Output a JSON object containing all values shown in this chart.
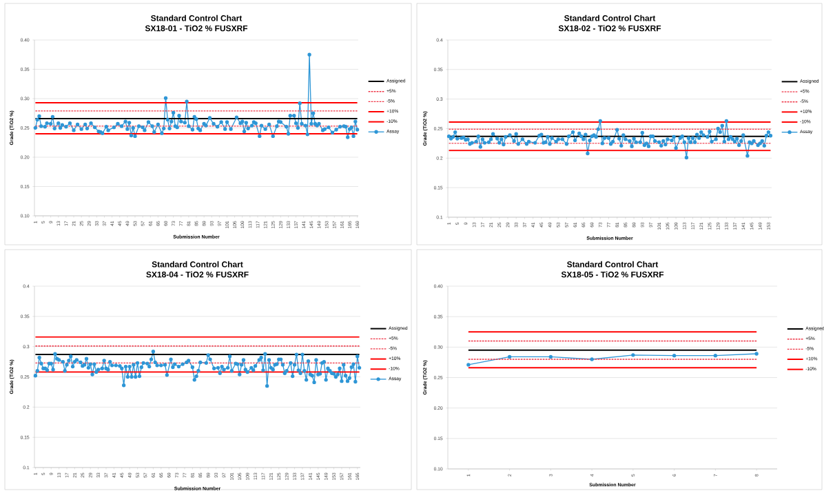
{
  "chart_data": [
    {
      "type": "line",
      "title": "Standard Control Chart",
      "subtitle": "SX18-01 - TiO2 % FUSXRF",
      "xlabel": "Submission Number",
      "ylabel": "Grade (TiO2 %)",
      "xlim": [
        0.5,
        169.5
      ],
      "ylim": [
        0.1,
        0.4
      ],
      "xticks": [
        1,
        5,
        9,
        13,
        17,
        21,
        25,
        29,
        33,
        37,
        41,
        45,
        49,
        53,
        57,
        61,
        65,
        69,
        73,
        77,
        81,
        85,
        89,
        93,
        97,
        101,
        105,
        109,
        113,
        117,
        121,
        125,
        129,
        133,
        137,
        141,
        145,
        149,
        153,
        157,
        161,
        165,
        169
      ],
      "yticks": [
        {
          "value": 0.1,
          "label": "0.10"
        },
        {
          "value": 0.15,
          "label": "0.15"
        },
        {
          "value": 0.2,
          "label": "0.20"
        },
        {
          "value": 0.25,
          "label": "0.25"
        },
        {
          "value": 0.3,
          "label": "0.30"
        },
        {
          "value": 0.35,
          "label": "0.35"
        },
        {
          "value": 0.4,
          "label": "0.40"
        }
      ],
      "grid": "y",
      "legend": "right",
      "series": [
        {
          "name": "Assigned",
          "color": "#000000",
          "line_style": "solid",
          "marker": "none",
          "x": [
            1,
            169
          ],
          "values": [
            0.266,
            0.266
          ]
        },
        {
          "name": "+5%",
          "color": "#ee3344",
          "line_style": "dotted",
          "marker": "none",
          "x": [
            1,
            169
          ],
          "values": [
            0.279,
            0.279
          ]
        },
        {
          "name": "-5%",
          "color": "#ee3344",
          "line_style": "dotted",
          "marker": "none",
          "x": [
            1,
            169
          ],
          "values": [
            0.253,
            0.253
          ]
        },
        {
          "name": "+10%",
          "color": "#ff0000",
          "line_style": "solid",
          "marker": "none",
          "x": [
            1,
            169
          ],
          "values": [
            0.293,
            0.293
          ]
        },
        {
          "name": "-10%",
          "color": "#ff0000",
          "line_style": "solid",
          "marker": "none",
          "x": [
            1,
            169
          ],
          "values": [
            0.24,
            0.24
          ]
        },
        {
          "name": "Assay",
          "color": "#2e96d6",
          "line_style": "solid",
          "marker": "circle",
          "x": [
            1,
            2,
            3,
            4,
            6,
            7,
            9,
            10,
            11,
            13,
            14,
            15,
            17,
            19,
            21,
            23,
            25,
            27,
            28,
            30,
            32,
            34,
            35,
            36,
            38,
            39,
            42,
            44,
            46,
            48,
            49,
            50,
            51,
            52,
            53,
            55,
            57,
            58,
            60,
            62,
            63,
            65,
            67,
            68,
            69,
            70,
            71,
            72,
            73,
            74,
            75,
            76,
            77,
            79,
            80,
            81,
            83,
            84,
            85,
            86,
            87,
            89,
            90,
            92,
            94,
            96,
            98,
            100,
            101,
            103,
            106,
            108,
            109,
            110,
            111,
            112,
            114,
            115,
            116,
            118,
            119,
            121,
            123,
            125,
            127,
            128,
            129,
            132,
            133,
            134,
            136,
            137,
            138,
            139,
            140,
            142,
            143,
            144,
            145,
            146,
            147,
            148,
            149,
            151,
            152,
            154,
            156,
            158,
            160,
            162,
            163,
            164,
            165,
            166,
            167,
            168,
            169
          ],
          "values": [
            0.25,
            0.264,
            0.27,
            0.253,
            0.252,
            0.258,
            0.257,
            0.269,
            0.249,
            0.258,
            0.25,
            0.255,
            0.252,
            0.258,
            0.246,
            0.256,
            0.248,
            0.256,
            0.249,
            0.258,
            0.251,
            0.244,
            0.243,
            0.241,
            0.252,
            0.246,
            0.251,
            0.257,
            0.253,
            0.261,
            0.248,
            0.259,
            0.237,
            0.25,
            0.236,
            0.253,
            0.251,
            0.246,
            0.26,
            0.253,
            0.243,
            0.256,
            0.241,
            0.249,
            0.301,
            0.264,
            0.249,
            0.261,
            0.276,
            0.253,
            0.251,
            0.271,
            0.261,
            0.259,
            0.295,
            0.253,
            0.247,
            0.269,
            0.265,
            0.249,
            0.246,
            0.257,
            0.254,
            0.267,
            0.257,
            0.252,
            0.26,
            0.248,
            0.26,
            0.248,
            0.268,
            0.258,
            0.261,
            0.244,
            0.259,
            0.249,
            0.254,
            0.26,
            0.258,
            0.236,
            0.254,
            0.248,
            0.256,
            0.236,
            0.253,
            0.261,
            0.26,
            0.252,
            0.24,
            0.271,
            0.271,
            0.258,
            0.25,
            0.292,
            0.257,
            0.254,
            0.239,
            0.375,
            0.257,
            0.275,
            0.257,
            0.254,
            0.257,
            0.246,
            0.248,
            0.251,
            0.242,
            0.247,
            0.252,
            0.253,
            0.252,
            0.234,
            0.248,
            0.251,
            0.236,
            0.261,
            0.247
          ]
        }
      ]
    },
    {
      "type": "line",
      "title": "Standard Control Chart",
      "subtitle": "SX18-02 - TiO2 % FUSXRF",
      "xlabel": "Submission Number",
      "ylabel": "Grade (TiO2 %)",
      "xlim": [
        0.5,
        154.5
      ],
      "ylim": [
        0.1,
        0.4
      ],
      "xticks": [
        1,
        5,
        9,
        13,
        17,
        21,
        25,
        29,
        33,
        37,
        41,
        45,
        49,
        53,
        57,
        61,
        65,
        69,
        73,
        77,
        81,
        85,
        89,
        93,
        97,
        101,
        105,
        109,
        113,
        117,
        121,
        125,
        129,
        133,
        137,
        141,
        145,
        149,
        153
      ],
      "yticks": [
        0.1,
        0.15,
        0.2,
        0.25,
        0.3,
        0.35,
        0.4
      ],
      "grid": "y",
      "legend": "right",
      "series": [
        {
          "name": "Assigned",
          "color": "#000000",
          "line_style": "solid",
          "marker": "none",
          "x": [
            1,
            154
          ],
          "values": [
            0.237,
            0.237
          ]
        },
        {
          "name": "+5%",
          "color": "#ee3344",
          "line_style": "dotted",
          "marker": "none",
          "x": [
            1,
            154
          ],
          "values": [
            0.249,
            0.249
          ]
        },
        {
          "name": "-5%",
          "color": "#ee3344",
          "line_style": "dotted",
          "marker": "none",
          "x": [
            1,
            154
          ],
          "values": [
            0.225,
            0.225
          ]
        },
        {
          "name": "+10%",
          "color": "#ff0000",
          "line_style": "solid",
          "marker": "none",
          "x": [
            1,
            154
          ],
          "values": [
            0.261,
            0.261
          ]
        },
        {
          "name": "-10%",
          "color": "#ff0000",
          "line_style": "solid",
          "marker": "none",
          "x": [
            1,
            154
          ],
          "values": [
            0.213,
            0.213
          ]
        },
        {
          "name": "Assay",
          "color": "#2e96d6",
          "line_style": "solid",
          "marker": "circle",
          "x": [
            1,
            2,
            3,
            4,
            5,
            7,
            8,
            9,
            10,
            11,
            12,
            14,
            15,
            16,
            17,
            18,
            20,
            21,
            22,
            24,
            25,
            26,
            27,
            28,
            30,
            32,
            33,
            34,
            36,
            38,
            39,
            42,
            44,
            45,
            46,
            47,
            48,
            49,
            50,
            52,
            53,
            55,
            57,
            58,
            60,
            61,
            63,
            64,
            65,
            66,
            67,
            68,
            69,
            70,
            71,
            72,
            73,
            74,
            75,
            77,
            78,
            79,
            81,
            82,
            83,
            84,
            85,
            87,
            88,
            89,
            90,
            92,
            93,
            94,
            95,
            96,
            97,
            98,
            99,
            101,
            102,
            103,
            104,
            105,
            107,
            108,
            109,
            111,
            112,
            113,
            114,
            115,
            116,
            117,
            118,
            119,
            120,
            121,
            122,
            124,
            125,
            126,
            128,
            129,
            130,
            131,
            132,
            133,
            134,
            135,
            136,
            137,
            138,
            139,
            140,
            141,
            143,
            144,
            145,
            146,
            148,
            149,
            150,
            151,
            152,
            153,
            154
          ],
          "values": [
            0.237,
            0.233,
            0.236,
            0.244,
            0.233,
            0.234,
            0.235,
            0.231,
            0.232,
            0.224,
            0.226,
            0.228,
            0.237,
            0.219,
            0.232,
            0.226,
            0.227,
            0.232,
            0.241,
            0.233,
            0.226,
            0.232,
            0.223,
            0.236,
            0.239,
            0.229,
            0.241,
            0.224,
            0.232,
            0.224,
            0.228,
            0.226,
            0.238,
            0.24,
            0.226,
            0.227,
            0.236,
            0.224,
            0.234,
            0.228,
            0.232,
            0.232,
            0.224,
            0.237,
            0.244,
            0.23,
            0.242,
            0.237,
            0.232,
            0.24,
            0.208,
            0.23,
            0.237,
            0.239,
            0.236,
            0.249,
            0.263,
            0.225,
            0.234,
            0.234,
            0.224,
            0.228,
            0.248,
            0.233,
            0.221,
            0.239,
            0.232,
            0.229,
            0.22,
            0.233,
            0.227,
            0.227,
            0.243,
            0.222,
            0.225,
            0.22,
            0.237,
            0.237,
            0.229,
            0.227,
            0.221,
            0.229,
            0.223,
            0.232,
            0.23,
            0.236,
            0.217,
            0.234,
            0.237,
            0.227,
            0.201,
            0.234,
            0.227,
            0.234,
            0.227,
            0.24,
            0.234,
            0.244,
            0.239,
            0.236,
            0.245,
            0.228,
            0.232,
            0.25,
            0.244,
            0.255,
            0.228,
            0.263,
            0.232,
            0.236,
            0.232,
            0.228,
            0.233,
            0.222,
            0.229,
            0.239,
            0.204,
            0.227,
            0.225,
            0.229,
            0.222,
            0.225,
            0.229,
            0.221,
            0.238,
            0.244,
            0.238
          ]
        }
      ]
    },
    {
      "type": "line",
      "title": "Standard Control Chart",
      "subtitle": "SX18-04 - TiO2 % FUSXRF",
      "xlabel": "Submission Number",
      "ylabel": "Grade (TiO2 %)",
      "xlim": [
        0.5,
        166.5
      ],
      "ylim": [
        0.1,
        0.4
      ],
      "xticks": [
        1,
        5,
        9,
        13,
        17,
        21,
        25,
        29,
        33,
        37,
        41,
        45,
        49,
        53,
        57,
        61,
        65,
        69,
        73,
        77,
        81,
        85,
        89,
        93,
        97,
        101,
        105,
        109,
        113,
        117,
        121,
        125,
        129,
        133,
        137,
        141,
        145,
        149,
        153,
        157,
        161,
        165
      ],
      "yticks": [
        0.1,
        0.15,
        0.2,
        0.25,
        0.3,
        0.35,
        0.4
      ],
      "grid": "y",
      "legend": "right",
      "series": [
        {
          "name": "Assigned",
          "color": "#000000",
          "line_style": "solid",
          "marker": "none",
          "x": [
            1,
            166
          ],
          "values": [
            0.287,
            0.287
          ]
        },
        {
          "name": "+5%",
          "color": "#ee3344",
          "line_style": "dotted",
          "marker": "none",
          "x": [
            1,
            166
          ],
          "values": [
            0.301,
            0.301
          ]
        },
        {
          "name": "-5%",
          "color": "#ee3344",
          "line_style": "dotted",
          "marker": "none",
          "x": [
            1,
            166
          ],
          "values": [
            0.273,
            0.273
          ]
        },
        {
          "name": "+10%",
          "color": "#ff0000",
          "line_style": "solid",
          "marker": "none",
          "x": [
            1,
            166
          ],
          "values": [
            0.316,
            0.316
          ]
        },
        {
          "name": "-10%",
          "color": "#ff0000",
          "line_style": "solid",
          "marker": "none",
          "x": [
            1,
            166
          ],
          "values": [
            0.258,
            0.258
          ]
        },
        {
          "name": "Assay",
          "color": "#2e96d6",
          "line_style": "solid",
          "marker": "circle",
          "x": [
            1,
            2,
            3,
            4,
            5,
            6,
            7,
            8,
            9,
            10,
            11,
            12,
            13,
            15,
            16,
            17,
            18,
            19,
            20,
            21,
            22,
            24,
            25,
            26,
            27,
            28,
            29,
            30,
            31,
            32,
            33,
            35,
            36,
            37,
            38,
            39,
            40,
            42,
            44,
            45,
            46,
            47,
            48,
            49,
            50,
            51,
            52,
            53,
            54,
            55,
            56,
            58,
            59,
            60,
            61,
            62,
            63,
            65,
            67,
            68,
            70,
            71,
            72,
            74,
            76,
            78,
            79,
            81,
            82,
            83,
            84,
            85,
            88,
            89,
            90,
            92,
            94,
            95,
            96,
            97,
            99,
            100,
            101,
            103,
            104,
            105,
            106,
            107,
            108,
            109,
            111,
            112,
            113,
            115,
            116,
            117,
            118,
            119,
            120,
            121,
            122,
            123,
            124,
            125,
            126,
            127,
            128,
            129,
            131,
            132,
            133,
            134,
            135,
            136,
            137,
            138,
            139,
            140,
            141,
            142,
            143,
            144,
            145,
            146,
            147,
            148,
            149,
            150,
            151,
            152,
            153,
            154,
            155,
            156,
            157,
            158,
            159,
            160,
            161,
            162,
            163,
            164,
            165,
            166
          ],
          "values": [
            0.252,
            0.26,
            0.282,
            0.272,
            0.264,
            0.264,
            0.261,
            0.272,
            0.272,
            0.262,
            0.288,
            0.28,
            0.278,
            0.275,
            0.26,
            0.27,
            0.277,
            0.284,
            0.267,
            0.275,
            0.278,
            0.274,
            0.268,
            0.27,
            0.28,
            0.265,
            0.271,
            0.254,
            0.271,
            0.258,
            0.262,
            0.264,
            0.277,
            0.264,
            0.262,
            0.275,
            0.269,
            0.269,
            0.268,
            0.264,
            0.236,
            0.267,
            0.25,
            0.267,
            0.25,
            0.27,
            0.25,
            0.273,
            0.251,
            0.266,
            0.273,
            0.272,
            0.267,
            0.279,
            0.292,
            0.274,
            0.269,
            0.269,
            0.27,
            0.253,
            0.279,
            0.266,
            0.271,
            0.267,
            0.271,
            0.274,
            0.277,
            0.266,
            0.245,
            0.251,
            0.26,
            0.274,
            0.273,
            0.286,
            0.279,
            0.264,
            0.265,
            0.256,
            0.267,
            0.262,
            0.265,
            0.284,
            0.26,
            0.272,
            0.271,
            0.254,
            0.27,
            0.278,
            0.262,
            0.258,
            0.265,
            0.261,
            0.268,
            0.278,
            0.282,
            0.261,
            0.288,
            0.235,
            0.278,
            0.265,
            0.262,
            0.27,
            0.271,
            0.279,
            0.279,
            0.27,
            0.256,
            0.26,
            0.273,
            0.251,
            0.27,
            0.287,
            0.261,
            0.256,
            0.287,
            0.26,
            0.245,
            0.276,
            0.254,
            0.252,
            0.241,
            0.278,
            0.254,
            0.255,
            0.273,
            0.275,
            0.245,
            0.264,
            0.26,
            0.256,
            0.255,
            0.25,
            0.254,
            0.264,
            0.243,
            0.27,
            0.252,
            0.243,
            0.248,
            0.266,
            0.271,
            0.242,
            0.284,
            0.265
          ]
        }
      ]
    },
    {
      "type": "line",
      "title": "Standard Control Chart",
      "subtitle": "SX18-05 - TiO2 % FUSXRF",
      "xlabel": "Submission Number",
      "ylabel": "Grade (TiO2 %)",
      "xlim": [
        0.5,
        8.5
      ],
      "ylim": [
        0.1,
        0.4
      ],
      "xticks": [
        1,
        2,
        3,
        4,
        5,
        6,
        7,
        8
      ],
      "yticks": [
        {
          "value": 0.1,
          "label": "0.10"
        },
        {
          "value": 0.15,
          "label": "0.15"
        },
        {
          "value": 0.2,
          "label": "0.20"
        },
        {
          "value": 0.25,
          "label": "0.25"
        },
        {
          "value": 0.3,
          "label": "0.30"
        },
        {
          "value": 0.35,
          "label": "0.35"
        },
        {
          "value": 0.4,
          "label": "0.40"
        }
      ],
      "grid": "y",
      "legend": "right",
      "series": [
        {
          "name": "Assigned",
          "color": "#000000",
          "line_style": "solid",
          "marker": "none",
          "x": [
            1,
            8
          ],
          "values": [
            0.295,
            0.295
          ]
        },
        {
          "name": "+5%",
          "color": "#ee3344",
          "line_style": "dotted",
          "marker": "none",
          "x": [
            1,
            8
          ],
          "values": [
            0.31,
            0.31
          ]
        },
        {
          "name": "-5%",
          "color": "#ee3344",
          "line_style": "dotted",
          "marker": "none",
          "x": [
            1,
            8
          ],
          "values": [
            0.28,
            0.28
          ]
        },
        {
          "name": "+10%",
          "color": "#ff0000",
          "line_style": "solid",
          "marker": "none",
          "x": [
            1,
            8
          ],
          "values": [
            0.325,
            0.325
          ]
        },
        {
          "name": "-10%",
          "color": "#ff0000",
          "line_style": "solid",
          "marker": "none",
          "x": [
            1,
            8
          ],
          "values": [
            0.266,
            0.266
          ]
        },
        {
          "color": "#2e96d6",
          "line_style": "solid",
          "marker": "circle",
          "x": [
            1,
            2,
            3,
            4,
            5,
            6,
            7,
            8
          ],
          "values": [
            0.271,
            0.284,
            0.284,
            0.28,
            0.287,
            0.286,
            0.286,
            0.289
          ]
        }
      ]
    }
  ]
}
